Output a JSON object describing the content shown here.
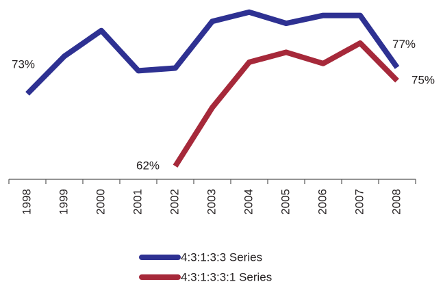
{
  "chart_data": {
    "type": "line",
    "categories": [
      "1998",
      "1999",
      "2000",
      "2001",
      "2002",
      "2003",
      "2004",
      "2005",
      "2006",
      "2007",
      "2008"
    ],
    "ylim": [
      60,
      86
    ],
    "series": [
      {
        "name": "4:3:1:3:3 Series",
        "color": "#2e3192",
        "values": [
          73,
          78.7,
          82.6,
          76.5,
          76.9,
          84,
          85.4,
          83.7,
          84.9,
          84.9,
          77
        ],
        "value_labels": [
          "73%",
          null,
          null,
          null,
          null,
          null,
          null,
          null,
          null,
          null,
          "77%"
        ]
      },
      {
        "name": "4:3:1:3:3:1 Series",
        "color": "#a6293a",
        "values": [
          null,
          null,
          null,
          null,
          62,
          70.9,
          77.8,
          79.3,
          77.6,
          80.7,
          75
        ],
        "value_labels": [
          null,
          null,
          null,
          null,
          "62%",
          null,
          null,
          null,
          null,
          null,
          "75%"
        ]
      }
    ]
  }
}
